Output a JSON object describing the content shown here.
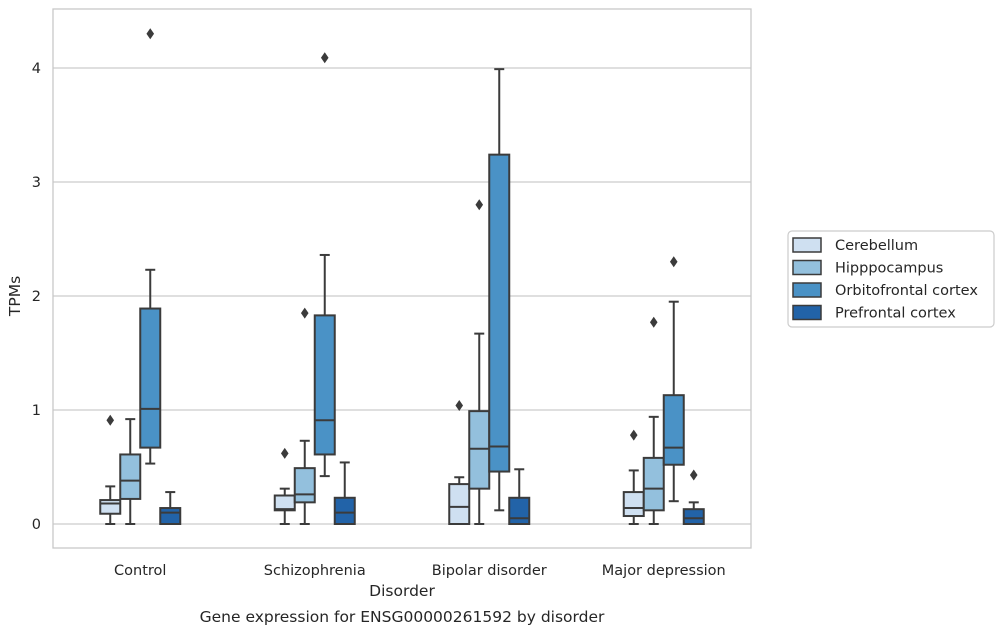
{
  "caption": "Gene expression for ENSG00000261592 by disorder",
  "colors": {
    "Cerebellum": "#cfe0f1",
    "Hipppocampus": "#93c0dd",
    "Orbitofrontal cortex": "#4a92c6",
    "Prefrontal cortex": "#2263a8",
    "edge": "#3b3b3b",
    "grid": "#cccccc",
    "frame": "#c8c8c8"
  },
  "chart_data": {
    "type": "box",
    "xlabel": "Disorder",
    "ylabel": "TPMs",
    "ylim": [
      -0.21,
      4.55
    ],
    "yticks": [
      0,
      1,
      2,
      3,
      4
    ],
    "grid": "horizontal",
    "legend_position": "right",
    "categories": [
      "Control",
      "Schizophrenia",
      "Bipolar disorder",
      "Major depression"
    ],
    "series": [
      {
        "name": "Cerebellum",
        "boxes": [
          {
            "whislo": 0.0,
            "q1": 0.09,
            "med": 0.18,
            "q3": 0.21,
            "whishi": 0.33,
            "fliers": [
              0.91
            ]
          },
          {
            "whislo": 0.0,
            "q1": 0.12,
            "med": 0.13,
            "q3": 0.25,
            "whishi": 0.31,
            "fliers": [
              0.62
            ]
          },
          {
            "whislo": 0.0,
            "q1": 0.0,
            "med": 0.15,
            "q3": 0.35,
            "whishi": 0.41,
            "fliers": [
              1.04
            ]
          },
          {
            "whislo": 0.0,
            "q1": 0.07,
            "med": 0.14,
            "q3": 0.28,
            "whishi": 0.47,
            "fliers": [
              0.78
            ]
          }
        ]
      },
      {
        "name": "Hipppocampus",
        "boxes": [
          {
            "whislo": 0.0,
            "q1": 0.22,
            "med": 0.38,
            "q3": 0.61,
            "whishi": 0.92,
            "fliers": []
          },
          {
            "whislo": 0.0,
            "q1": 0.19,
            "med": 0.26,
            "q3": 0.49,
            "whishi": 0.73,
            "fliers": [
              1.85
            ]
          },
          {
            "whislo": 0.0,
            "q1": 0.31,
            "med": 0.66,
            "q3": 0.99,
            "whishi": 1.67,
            "fliers": [
              2.8
            ]
          },
          {
            "whislo": 0.0,
            "q1": 0.12,
            "med": 0.31,
            "q3": 0.58,
            "whishi": 0.94,
            "fliers": [
              1.77
            ]
          }
        ]
      },
      {
        "name": "Orbitofrontal cortex",
        "boxes": [
          {
            "whislo": 0.53,
            "q1": 0.67,
            "med": 1.01,
            "q3": 1.89,
            "whishi": 2.23,
            "fliers": [
              4.3
            ]
          },
          {
            "whislo": 0.42,
            "q1": 0.61,
            "med": 0.91,
            "q3": 1.83,
            "whishi": 2.36,
            "fliers": [
              4.09
            ]
          },
          {
            "whislo": 0.12,
            "q1": 0.46,
            "med": 0.68,
            "q3": 3.24,
            "whishi": 3.99,
            "fliers": []
          },
          {
            "whislo": 0.2,
            "q1": 0.52,
            "med": 0.67,
            "q3": 1.13,
            "whishi": 1.95,
            "fliers": [
              2.3
            ]
          }
        ]
      },
      {
        "name": "Prefrontal cortex",
        "boxes": [
          {
            "whislo": 0.0,
            "q1": 0.0,
            "med": 0.1,
            "q3": 0.14,
            "whishi": 0.28,
            "fliers": []
          },
          {
            "whislo": 0.0,
            "q1": 0.0,
            "med": 0.1,
            "q3": 0.23,
            "whishi": 0.54,
            "fliers": []
          },
          {
            "whislo": 0.0,
            "q1": 0.0,
            "med": 0.05,
            "q3": 0.23,
            "whishi": 0.48,
            "fliers": []
          },
          {
            "whislo": 0.0,
            "q1": 0.0,
            "med": 0.05,
            "q3": 0.13,
            "whishi": 0.19,
            "fliers": [
              0.43
            ]
          }
        ]
      }
    ]
  }
}
